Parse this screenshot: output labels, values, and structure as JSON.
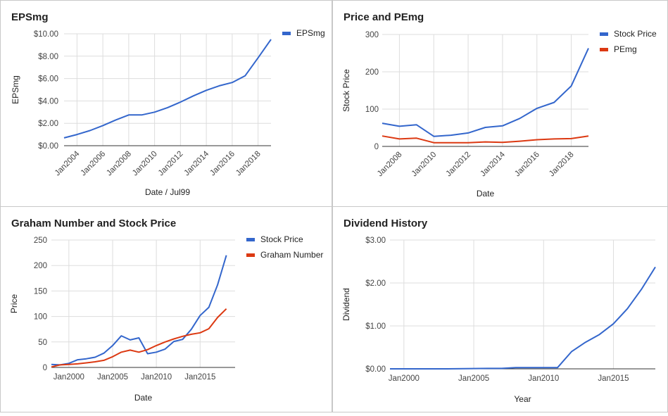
{
  "colors": {
    "blue": "#3366cc",
    "red": "#dc3912",
    "grid": "#dddddd",
    "axis": "#333333"
  },
  "chart_data": [
    {
      "type": "line",
      "title": "EPSmg",
      "xlabel": "Date / Jul99",
      "ylabel": "EPSmg",
      "x_ticks": [
        "Jan2004",
        "Jan2006",
        "Jan2008",
        "Jan2010",
        "Jan2012",
        "Jan2014",
        "Jan2016",
        "Jan2018"
      ],
      "y_ticks": [
        "$0.00",
        "$2.00",
        "$4.00",
        "$6.00",
        "$8.00",
        "$10.00"
      ],
      "xlim": [
        2003,
        2019
      ],
      "ylim": [
        0,
        10
      ],
      "legend": "right",
      "series": [
        {
          "name": "EPSmg",
          "color": "#3366cc",
          "x": [
            2003,
            2004,
            2005,
            2006,
            2007,
            2008,
            2009,
            2010,
            2011,
            2012,
            2013,
            2014,
            2015,
            2016,
            2017,
            2018,
            2019
          ],
          "y": [
            0.7,
            1.0,
            1.35,
            1.8,
            2.3,
            2.75,
            2.75,
            3.0,
            3.4,
            3.9,
            4.45,
            4.95,
            5.35,
            5.65,
            6.25,
            7.85,
            9.5
          ]
        }
      ]
    },
    {
      "type": "line",
      "title": "Price and PEmg",
      "xlabel": "Date",
      "ylabel": "Stock Price",
      "x_ticks": [
        "Jan2008",
        "Jan2010",
        "Jan2012",
        "Jan2014",
        "Jan2016",
        "Jan2018"
      ],
      "y_ticks": [
        "0",
        "100",
        "200",
        "300"
      ],
      "xlim": [
        2007,
        2019
      ],
      "ylim": [
        0,
        300
      ],
      "legend": "right",
      "series": [
        {
          "name": "Stock Price",
          "color": "#3366cc",
          "x": [
            2007,
            2008,
            2009,
            2010,
            2011,
            2012,
            2013,
            2014,
            2015,
            2016,
            2017,
            2018,
            2019
          ],
          "y": [
            62,
            54,
            58,
            27,
            30,
            36,
            51,
            55,
            75,
            102,
            118,
            162,
            263
          ]
        },
        {
          "name": "PEmg",
          "color": "#dc3912",
          "x": [
            2007,
            2008,
            2009,
            2010,
            2011,
            2012,
            2013,
            2014,
            2015,
            2016,
            2017,
            2018,
            2019
          ],
          "y": [
            28,
            20,
            22,
            10,
            10,
            10,
            12,
            11,
            14,
            18,
            20,
            21,
            28
          ]
        }
      ]
    },
    {
      "type": "line",
      "title": "Graham Number and Stock Price",
      "xlabel": "Date",
      "ylabel": "Price",
      "x_ticks": [
        "Jan2000",
        "Jan2005",
        "Jan2010",
        "Jan2015"
      ],
      "x_tick_values": [
        2000,
        2005,
        2010,
        2015
      ],
      "y_ticks": [
        "0",
        "50",
        "100",
        "150",
        "200",
        "250"
      ],
      "xlim": [
        1998,
        2019
      ],
      "ylim": [
        0,
        250
      ],
      "legend": "right",
      "series": [
        {
          "name": "Stock Price",
          "color": "#3366cc",
          "x": [
            1998,
            1999,
            2000,
            2001,
            2002,
            2003,
            2004,
            2005,
            2006,
            2007,
            2008,
            2009,
            2010,
            2011,
            2012,
            2013,
            2014,
            2015,
            2016,
            2017,
            2018
          ],
          "y": [
            6,
            5,
            8,
            15,
            17,
            20,
            28,
            43,
            62,
            54,
            58,
            27,
            30,
            36,
            51,
            55,
            75,
            102,
            118,
            162,
            220
          ]
        },
        {
          "name": "Graham Number",
          "color": "#dc3912",
          "x": [
            1998,
            1999,
            2000,
            2001,
            2002,
            2003,
            2004,
            2005,
            2006,
            2007,
            2008,
            2009,
            2010,
            2011,
            2012,
            2013,
            2014,
            2015,
            2016,
            2017,
            2018
          ],
          "y": [
            1,
            5,
            6,
            7,
            9,
            11,
            14,
            21,
            30,
            34,
            30,
            35,
            43,
            50,
            56,
            61,
            65,
            68,
            76,
            98,
            115
          ]
        }
      ]
    },
    {
      "type": "line",
      "title": "Dividend History",
      "xlabel": "Year",
      "ylabel": "Dividend",
      "x_ticks": [
        "Jan2000",
        "Jan2005",
        "Jan2010",
        "Jan2015"
      ],
      "x_tick_values": [
        2000,
        2005,
        2010,
        2015
      ],
      "y_ticks": [
        "$0.00",
        "$1.00",
        "$2.00",
        "$3.00"
      ],
      "xlim": [
        1999,
        2018
      ],
      "ylim": [
        0,
        3
      ],
      "legend": "none",
      "series": [
        {
          "name": "Dividend",
          "color": "#3366cc",
          "x": [
            1999,
            2003,
            2006,
            2007,
            2008,
            2009,
            2010,
            2011,
            2012,
            2013,
            2014,
            2015,
            2016,
            2017,
            2018
          ],
          "y": [
            0.0,
            0.0,
            0.01,
            0.01,
            0.03,
            0.03,
            0.03,
            0.03,
            0.4,
            0.62,
            0.8,
            1.05,
            1.4,
            1.85,
            2.37
          ]
        }
      ]
    }
  ]
}
